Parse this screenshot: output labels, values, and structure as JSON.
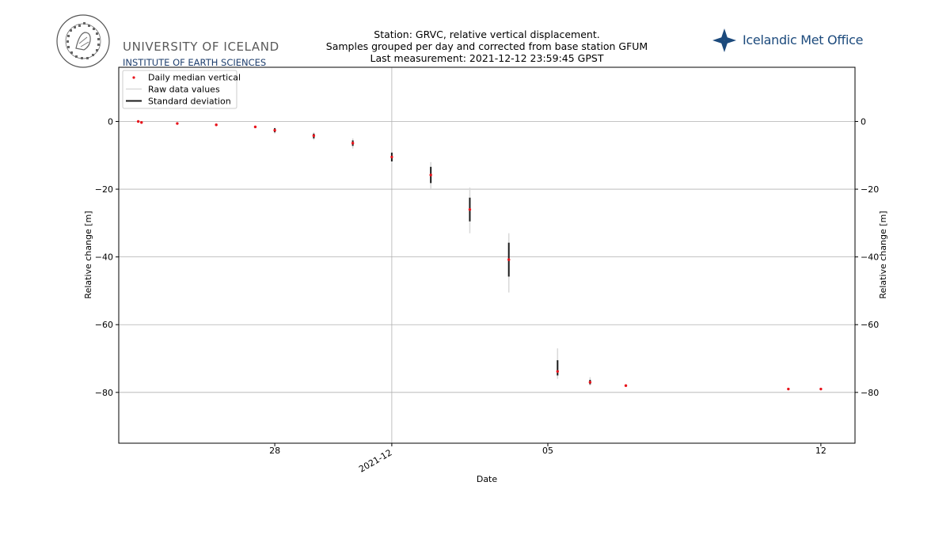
{
  "header": {
    "university_name": "UNIVERSITY OF ICELAND",
    "institute_name": "INSTITUTE OF EARTH SCIENCES",
    "seal_text": "UNIVERSITATIS ISLANDIAE SIGILLUM",
    "met_office_name": "Icelandic Met Office"
  },
  "chart_data": {
    "type": "scatter",
    "title_lines": [
      "Station: GRVC, relative vertical displacement.",
      "Samples grouped per day and corrected from base station GFUM",
      "Last measurement: 2021-12-12 23:59:45 GPST"
    ],
    "xlabel": "Date",
    "ylabel": "Relative change [m]",
    "ylabel_right": "Relative change [m]",
    "xlim": [
      "2021-11-24",
      "2021-12-12T21:00"
    ],
    "ylim": [
      -95,
      16
    ],
    "x_ticks": [
      {
        "date": "2021-11-28",
        "label": "28",
        "rotated": false
      },
      {
        "date": "2021-12-01",
        "label": "2021-12",
        "rotated": true
      },
      {
        "date": "2021-12-05",
        "label": "05",
        "rotated": false
      },
      {
        "date": "2021-12-12",
        "label": "12",
        "rotated": false
      }
    ],
    "y_ticks": [
      0,
      -20,
      -40,
      -60,
      -80
    ],
    "y_tick_labels": [
      "0",
      "−20",
      "−40",
      "−60",
      "−80"
    ],
    "grid": true,
    "legend_position": "top-left",
    "colors": {
      "median": "#e8141c",
      "raw": "#d9d9d9",
      "std": "#1a1a1a",
      "grid": "#b0b0b0"
    },
    "series": [
      {
        "name": "Daily median vertical",
        "marker": "dot",
        "points": [
          {
            "date": "2021-11-24T12:00",
            "y": 0.0
          },
          {
            "date": "2021-11-24T14:00",
            "y": -0.3
          },
          {
            "date": "2021-11-25T12:00",
            "y": -0.6
          },
          {
            "date": "2021-11-26T12:00",
            "y": -1.0
          },
          {
            "date": "2021-11-27T12:00",
            "y": -1.6
          },
          {
            "date": "2021-11-28T00:00",
            "y": -2.6
          },
          {
            "date": "2021-11-29T00:00",
            "y": -4.2
          },
          {
            "date": "2021-11-30T00:00",
            "y": -6.4
          },
          {
            "date": "2021-12-01T00:00",
            "y": -10.5
          },
          {
            "date": "2021-12-02T00:00",
            "y": -15.8
          },
          {
            "date": "2021-12-03T00:00",
            "y": -26.0
          },
          {
            "date": "2021-12-04T00:00",
            "y": -40.8
          },
          {
            "date": "2021-12-05T06:00",
            "y": -73.8
          },
          {
            "date": "2021-12-06T02:00",
            "y": -77.0
          },
          {
            "date": "2021-12-07T00:00",
            "y": -78.0
          },
          {
            "date": "2021-12-11T04:00",
            "y": -79.0
          },
          {
            "date": "2021-12-12T00:00",
            "y": -79.0
          }
        ]
      },
      {
        "name": "Raw data values",
        "type": "vertical-range",
        "ranges": [
          {
            "date": "2021-11-28T00:00",
            "low": -3.6,
            "high": -1.8
          },
          {
            "date": "2021-11-29T00:00",
            "low": -5.5,
            "high": -3.2
          },
          {
            "date": "2021-11-30T00:00",
            "low": -8.0,
            "high": -5.0
          },
          {
            "date": "2021-12-01T00:00",
            "low": -12.5,
            "high": -8.5
          },
          {
            "date": "2021-12-02T00:00",
            "low": -20.0,
            "high": -12.0
          },
          {
            "date": "2021-12-03T00:00",
            "low": -33.0,
            "high": -19.5
          },
          {
            "date": "2021-12-04T00:00",
            "low": -50.5,
            "high": -33.0
          },
          {
            "date": "2021-12-05T06:00",
            "low": -76.0,
            "high": -67.0
          },
          {
            "date": "2021-12-06T02:00",
            "low": -78.0,
            "high": -75.5
          }
        ]
      },
      {
        "name": "Standard deviation",
        "type": "error-bar",
        "bars": [
          {
            "date": "2021-11-28T00:00",
            "low": -3.2,
            "high": -2.0
          },
          {
            "date": "2021-11-29T00:00",
            "low": -5.0,
            "high": -3.6
          },
          {
            "date": "2021-11-30T00:00",
            "low": -7.2,
            "high": -5.6
          },
          {
            "date": "2021-12-01T00:00",
            "low": -11.8,
            "high": -9.2
          },
          {
            "date": "2021-12-02T00:00",
            "low": -18.2,
            "high": -13.4
          },
          {
            "date": "2021-12-03T00:00",
            "low": -29.5,
            "high": -22.5
          },
          {
            "date": "2021-12-04T00:00",
            "low": -45.8,
            "high": -35.8
          },
          {
            "date": "2021-12-05T06:00",
            "low": -75.0,
            "high": -70.5
          },
          {
            "date": "2021-12-06T02:00",
            "low": -77.6,
            "high": -76.3
          }
        ]
      }
    ]
  }
}
